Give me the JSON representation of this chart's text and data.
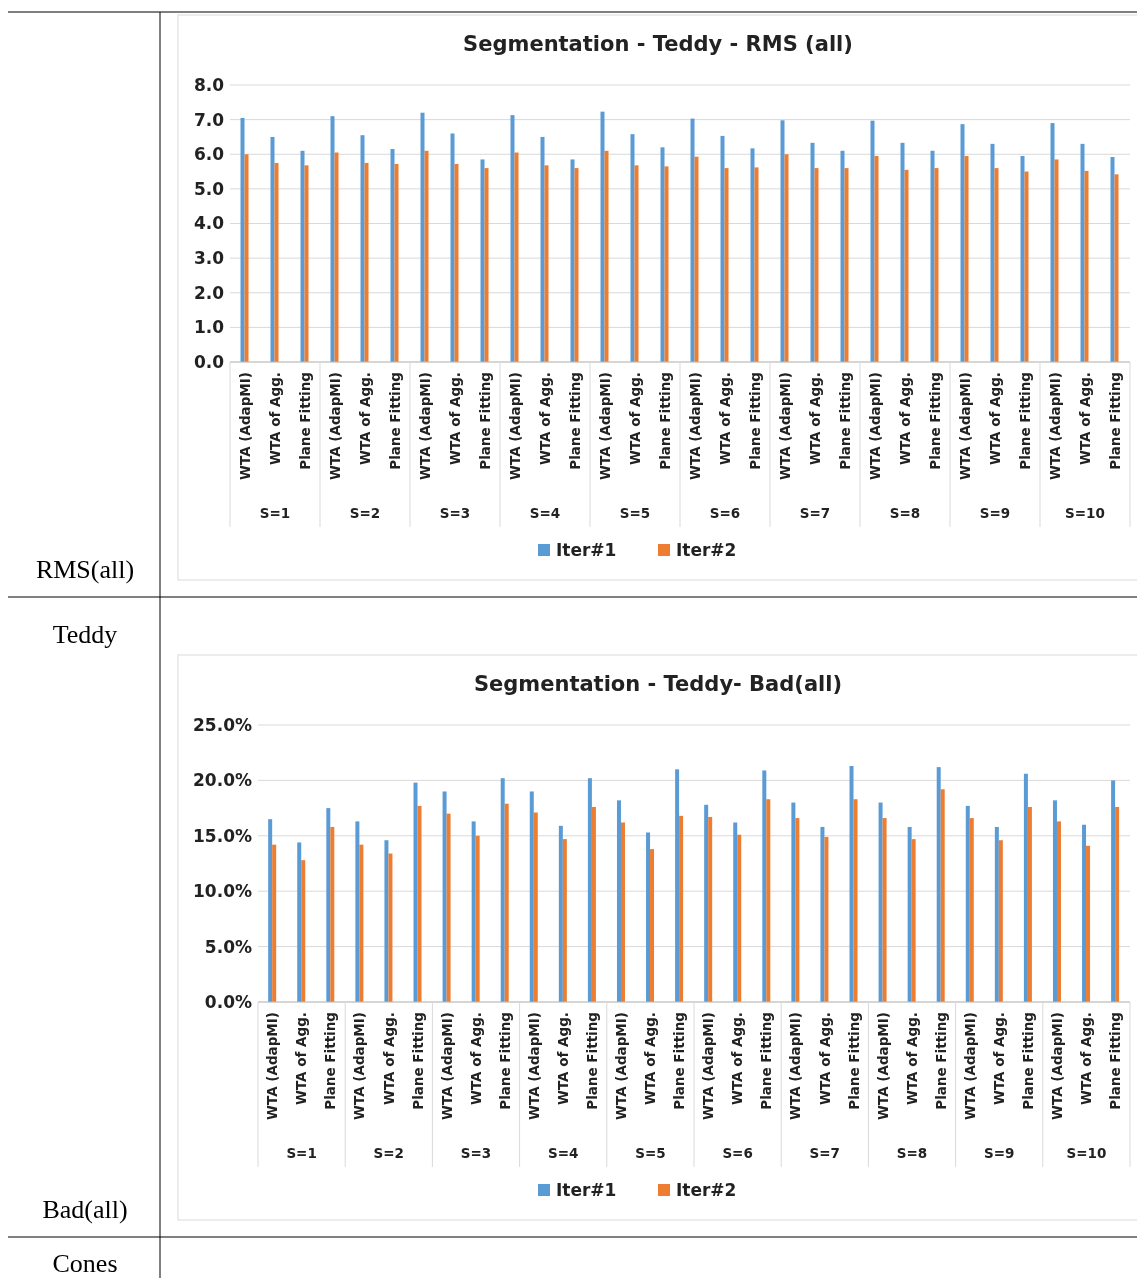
{
  "chart_data": [
    {
      "type": "bar",
      "title": "Segmentation - Teddy - RMS (all)",
      "categories": [
        "WTA (AdapMI)",
        "WTA of Agg.",
        "Plane Fitting",
        "WTA (AdapMI)",
        "WTA of Agg.",
        "Plane Fitting",
        "WTA (AdapMI)",
        "WTA of Agg.",
        "Plane Fitting",
        "WTA (AdapMI)",
        "WTA of Agg.",
        "Plane Fitting",
        "WTA (AdapMI)",
        "WTA of Agg.",
        "Plane Fitting",
        "WTA (AdapMI)",
        "WTA of Agg.",
        "Plane Fitting",
        "WTA (AdapMI)",
        "WTA of Agg.",
        "Plane Fitting",
        "WTA (AdapMI)",
        "WTA of Agg.",
        "Plane Fitting",
        "WTA (AdapMI)",
        "WTA of Agg.",
        "Plane Fitting",
        "WTA (AdapMI)",
        "WTA of Agg.",
        "Plane Fitting"
      ],
      "series": [
        {
          "name": "Iter#1",
          "color": "#5b9bd5",
          "values": [
            7.05,
            6.5,
            6.1,
            7.1,
            6.55,
            6.15,
            7.2,
            6.6,
            5.85,
            7.13,
            6.5,
            5.85,
            7.23,
            6.58,
            6.2,
            7.03,
            6.53,
            6.17,
            6.98,
            6.33,
            6.1,
            6.97,
            6.33,
            6.1,
            6.87,
            6.3,
            5.95,
            6.9,
            6.3,
            5.92
          ]
        },
        {
          "name": "Iter#2",
          "color": "#ed7d31",
          "values": [
            6.0,
            5.75,
            5.68,
            6.05,
            5.75,
            5.72,
            6.1,
            5.72,
            5.6,
            6.05,
            5.68,
            5.6,
            6.1,
            5.68,
            5.65,
            5.93,
            5.6,
            5.62,
            6.0,
            5.6,
            5.6,
            5.95,
            5.55,
            5.6,
            5.95,
            5.6,
            5.5,
            5.85,
            5.52,
            5.42
          ]
        }
      ],
      "ylim": [
        0,
        8
      ],
      "yticks": [
        {
          "value": 0,
          "label": "0.0"
        },
        {
          "value": 1,
          "label": "1.0"
        },
        {
          "value": 2,
          "label": "2.0"
        },
        {
          "value": 3,
          "label": "3.0"
        },
        {
          "value": 4,
          "label": "4.0"
        },
        {
          "value": 5,
          "label": "5.0"
        },
        {
          "value": 6,
          "label": "6.0"
        },
        {
          "value": 7,
          "label": "7.0"
        },
        {
          "value": 8,
          "label": "8.0"
        }
      ],
      "grid": "y",
      "legend": "bottom",
      "annotations": [
        "S=1",
        "S=2",
        "S=3",
        "S=4",
        "S=5",
        "S=6",
        "S=7",
        "S=8",
        "S=9",
        "S=10",
        "RMS(all)"
      ]
    },
    {
      "type": "bar",
      "title": "Segmentation - Teddy- Bad(all)",
      "categories": [
        "WTA (AdapMI)",
        "WTA of Agg.",
        "Plane Fitting",
        "WTA (AdapMI)",
        "WTA of Agg.",
        "Plane Fitting",
        "WTA (AdapMI)",
        "WTA of Agg.",
        "Plane Fitting",
        "WTA (AdapMI)",
        "WTA of Agg.",
        "Plane Fitting",
        "WTA (AdapMI)",
        "WTA of Agg.",
        "Plane Fitting",
        "WTA (AdapMI)",
        "WTA of Agg.",
        "Plane Fitting",
        "WTA (AdapMI)",
        "WTA of Agg.",
        "Plane Fitting",
        "WTA (AdapMI)",
        "WTA of Agg.",
        "Plane Fitting",
        "WTA (AdapMI)",
        "WTA of Agg.",
        "Plane Fitting",
        "WTA (AdapMI)",
        "WTA of Agg.",
        "Plane Fitting"
      ],
      "series": [
        {
          "name": "Iter#1",
          "color": "#5b9bd5",
          "values": [
            16.5,
            14.4,
            17.5,
            16.3,
            14.6,
            19.8,
            19.0,
            16.3,
            20.2,
            19.0,
            15.9,
            20.2,
            18.2,
            15.3,
            21.0,
            17.8,
            16.2,
            20.9,
            18.0,
            15.8,
            21.3,
            18.0,
            15.8,
            21.2,
            17.7,
            15.8,
            20.6,
            18.2,
            16.0,
            20.0
          ]
        },
        {
          "name": "Iter#2",
          "color": "#ed7d31",
          "values": [
            14.2,
            12.8,
            15.8,
            14.2,
            13.4,
            17.7,
            17.0,
            15.0,
            17.9,
            17.1,
            14.7,
            17.6,
            16.2,
            13.8,
            16.8,
            16.7,
            15.1,
            18.3,
            16.6,
            14.9,
            18.3,
            16.6,
            14.7,
            19.2,
            16.6,
            14.6,
            17.6,
            16.3,
            14.1,
            17.6
          ]
        }
      ],
      "ylim": [
        0,
        25
      ],
      "yticks": [
        {
          "value": 0,
          "label": "0.0%"
        },
        {
          "value": 5,
          "label": "5.0%"
        },
        {
          "value": 10,
          "label": "10.0%"
        },
        {
          "value": 15,
          "label": "15.0%"
        },
        {
          "value": 20,
          "label": "20.0%"
        },
        {
          "value": 25,
          "label": "25.0%"
        }
      ],
      "grid": "y",
      "legend": "bottom",
      "annotations": [
        "S=1",
        "S=2",
        "S=3",
        "S=4",
        "S=5",
        "S=6",
        "S=7",
        "S=8",
        "S=9",
        "S=10",
        "Teddy",
        "Bad(all)",
        "Cones"
      ]
    }
  ]
}
